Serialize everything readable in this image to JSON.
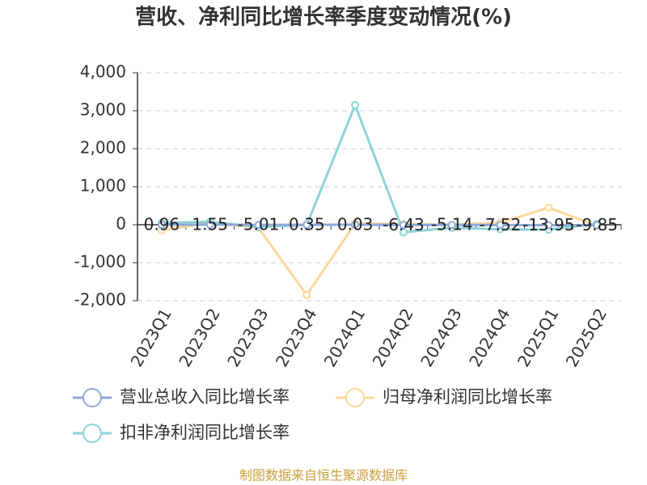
{
  "chart_data": {
    "type": "line",
    "title": "营收、净利同比增长率季度变动情况(%)",
    "source": "制图数据来自恒生聚源数据库",
    "categories": [
      "2023Q1",
      "2023Q2",
      "2023Q3",
      "2023Q4",
      "2024Q1",
      "2024Q2",
      "2024Q3",
      "2024Q4",
      "2025Q1",
      "2025Q2"
    ],
    "series": [
      {
        "name": "营业总收入同比增长率",
        "color": "#8fa9d8",
        "show_labels": true,
        "values": [
          0.96,
          1.55,
          -5.01,
          0.35,
          0.03,
          -6.43,
          -5.14,
          -7.52,
          -13.95,
          -9.85
        ]
      },
      {
        "name": "归母净利润同比增长率",
        "color": "#fbd89a",
        "values": [
          -150,
          50,
          -80,
          -1850,
          30,
          20,
          0,
          50,
          450,
          -30
        ]
      },
      {
        "name": "扣非净利润同比增长率",
        "color": "#8dd3d8",
        "values": [
          50,
          80,
          -60,
          -10,
          3150,
          -200,
          -80,
          -120,
          -130,
          20
        ]
      }
    ],
    "ylim": [
      -2000,
      4000
    ],
    "yticks": [
      {
        "value": -2000,
        "label": "-2,000"
      },
      {
        "value": -1000,
        "label": "-1,000"
      },
      0,
      {
        "value": 1000,
        "label": "1,000"
      },
      {
        "value": 2000,
        "label": "2,000"
      },
      {
        "value": 3000,
        "label": "3,000"
      },
      {
        "value": 4000,
        "label": "4,000"
      }
    ],
    "grid": true
  }
}
